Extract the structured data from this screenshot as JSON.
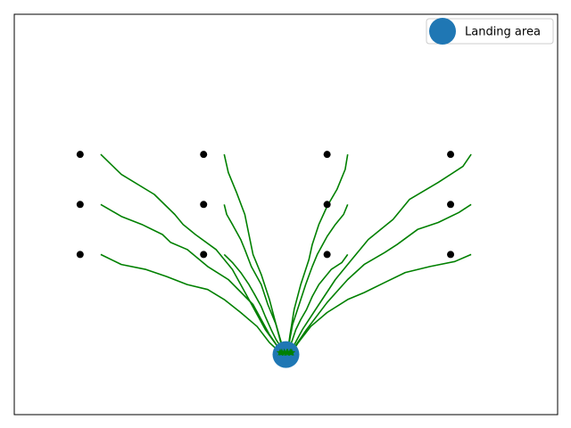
{
  "chart_data": {
    "type": "line",
    "xlim": [
      -3.3,
      3.3
    ],
    "ylim": [
      -0.6,
      3.4
    ],
    "ticks_visible": false,
    "grid": false,
    "legend": {
      "placement": "top-right",
      "entries": [
        {
          "label": "Landing area",
          "marker": "circle",
          "color": "#1f77b4"
        }
      ]
    },
    "landing_area": {
      "x": 0.0,
      "y": 0.0
    },
    "starts": [
      [
        -2.5,
        2.0
      ],
      [
        -1.0,
        2.0
      ],
      [
        0.5,
        2.0
      ],
      [
        2.0,
        2.0
      ],
      [
        -2.5,
        1.5
      ],
      [
        -1.0,
        1.5
      ],
      [
        0.5,
        1.5
      ],
      [
        2.0,
        1.5
      ],
      [
        -2.5,
        1.0
      ],
      [
        -1.0,
        1.0
      ],
      [
        0.5,
        1.0
      ],
      [
        2.0,
        1.0
      ]
    ],
    "start_marker": {
      "shape": "circle",
      "color": "#000000"
    },
    "end_marker": {
      "shape": "star",
      "color": "#008000"
    },
    "series": [
      {
        "values": [
          [
            -2.25,
            2.0
          ],
          [
            -2.0,
            1.8
          ],
          [
            -1.6,
            1.6
          ],
          [
            -1.35,
            1.4
          ],
          [
            -1.25,
            1.3
          ],
          [
            -1.1,
            1.2
          ],
          [
            -0.85,
            1.05
          ],
          [
            -0.65,
            0.85
          ],
          [
            -0.45,
            0.55
          ],
          [
            -0.25,
            0.25
          ],
          [
            -0.05,
            0.02
          ]
        ]
      },
      {
        "values": [
          [
            -0.75,
            2.0
          ],
          [
            -0.7,
            1.82
          ],
          [
            -0.6,
            1.62
          ],
          [
            -0.5,
            1.4
          ],
          [
            -0.45,
            1.2
          ],
          [
            -0.4,
            1.0
          ],
          [
            -0.3,
            0.8
          ],
          [
            -0.2,
            0.55
          ],
          [
            -0.12,
            0.3
          ],
          [
            -0.05,
            0.08
          ],
          [
            -0.02,
            0.02
          ]
        ]
      },
      {
        "values": [
          [
            0.75,
            2.0
          ],
          [
            0.72,
            1.85
          ],
          [
            0.62,
            1.65
          ],
          [
            0.5,
            1.48
          ],
          [
            0.4,
            1.3
          ],
          [
            0.32,
            1.1
          ],
          [
            0.28,
            0.95
          ],
          [
            0.18,
            0.7
          ],
          [
            0.1,
            0.45
          ],
          [
            0.05,
            0.2
          ],
          [
            0.02,
            0.02
          ]
        ]
      },
      {
        "values": [
          [
            2.25,
            2.0
          ],
          [
            2.15,
            1.88
          ],
          [
            1.85,
            1.72
          ],
          [
            1.5,
            1.55
          ],
          [
            1.3,
            1.35
          ],
          [
            1.0,
            1.15
          ],
          [
            0.8,
            0.95
          ],
          [
            0.6,
            0.75
          ],
          [
            0.4,
            0.5
          ],
          [
            0.2,
            0.25
          ],
          [
            0.05,
            0.02
          ]
        ]
      },
      {
        "values": [
          [
            -2.25,
            1.5
          ],
          [
            -2.0,
            1.38
          ],
          [
            -1.75,
            1.3
          ],
          [
            -1.5,
            1.2
          ],
          [
            -1.4,
            1.12
          ],
          [
            -1.2,
            1.05
          ],
          [
            -0.95,
            0.88
          ],
          [
            -0.7,
            0.75
          ],
          [
            -0.4,
            0.5
          ],
          [
            -0.2,
            0.2
          ],
          [
            -0.05,
            0.02
          ]
        ]
      },
      {
        "values": [
          [
            -0.75,
            1.5
          ],
          [
            -0.72,
            1.4
          ],
          [
            -0.65,
            1.3
          ],
          [
            -0.55,
            1.15
          ],
          [
            -0.5,
            1.05
          ],
          [
            -0.42,
            0.88
          ],
          [
            -0.3,
            0.7
          ],
          [
            -0.22,
            0.5
          ],
          [
            -0.12,
            0.3
          ],
          [
            -0.05,
            0.1
          ],
          [
            -0.02,
            0.02
          ]
        ]
      },
      {
        "values": [
          [
            0.75,
            1.5
          ],
          [
            0.7,
            1.4
          ],
          [
            0.6,
            1.3
          ],
          [
            0.5,
            1.18
          ],
          [
            0.38,
            1.0
          ],
          [
            0.32,
            0.88
          ],
          [
            0.24,
            0.7
          ],
          [
            0.16,
            0.5
          ],
          [
            0.08,
            0.3
          ],
          [
            0.04,
            0.12
          ],
          [
            0.01,
            0.02
          ]
        ]
      },
      {
        "values": [
          [
            2.25,
            1.5
          ],
          [
            2.1,
            1.42
          ],
          [
            1.85,
            1.32
          ],
          [
            1.6,
            1.25
          ],
          [
            1.35,
            1.1
          ],
          [
            1.2,
            1.02
          ],
          [
            0.95,
            0.9
          ],
          [
            0.75,
            0.75
          ],
          [
            0.5,
            0.52
          ],
          [
            0.25,
            0.25
          ],
          [
            0.06,
            0.02
          ]
        ]
      },
      {
        "values": [
          [
            -2.25,
            1.0
          ],
          [
            -2.0,
            0.9
          ],
          [
            -1.7,
            0.85
          ],
          [
            -1.45,
            0.78
          ],
          [
            -1.2,
            0.7
          ],
          [
            -0.95,
            0.65
          ],
          [
            -0.75,
            0.55
          ],
          [
            -0.55,
            0.42
          ],
          [
            -0.35,
            0.28
          ],
          [
            -0.2,
            0.12
          ],
          [
            -0.07,
            0.02
          ]
        ]
      },
      {
        "values": [
          [
            -0.75,
            1.0
          ],
          [
            -0.65,
            0.92
          ],
          [
            -0.55,
            0.82
          ],
          [
            -0.45,
            0.7
          ],
          [
            -0.38,
            0.6
          ],
          [
            -0.3,
            0.48
          ],
          [
            -0.25,
            0.38
          ],
          [
            -0.18,
            0.25
          ],
          [
            -0.12,
            0.15
          ],
          [
            -0.05,
            0.06
          ],
          [
            -0.02,
            0.02
          ]
        ]
      },
      {
        "values": [
          [
            0.75,
            1.0
          ],
          [
            0.68,
            0.92
          ],
          [
            0.55,
            0.85
          ],
          [
            0.4,
            0.7
          ],
          [
            0.32,
            0.58
          ],
          [
            0.25,
            0.45
          ],
          [
            0.18,
            0.35
          ],
          [
            0.12,
            0.25
          ],
          [
            0.08,
            0.15
          ],
          [
            0.04,
            0.06
          ],
          [
            0.02,
            0.02
          ]
        ]
      },
      {
        "values": [
          [
            2.25,
            1.0
          ],
          [
            2.05,
            0.93
          ],
          [
            1.75,
            0.88
          ],
          [
            1.45,
            0.82
          ],
          [
            1.2,
            0.72
          ],
          [
            0.95,
            0.62
          ],
          [
            0.75,
            0.55
          ],
          [
            0.5,
            0.42
          ],
          [
            0.3,
            0.28
          ],
          [
            0.15,
            0.12
          ],
          [
            0.07,
            0.02
          ]
        ]
      }
    ]
  }
}
